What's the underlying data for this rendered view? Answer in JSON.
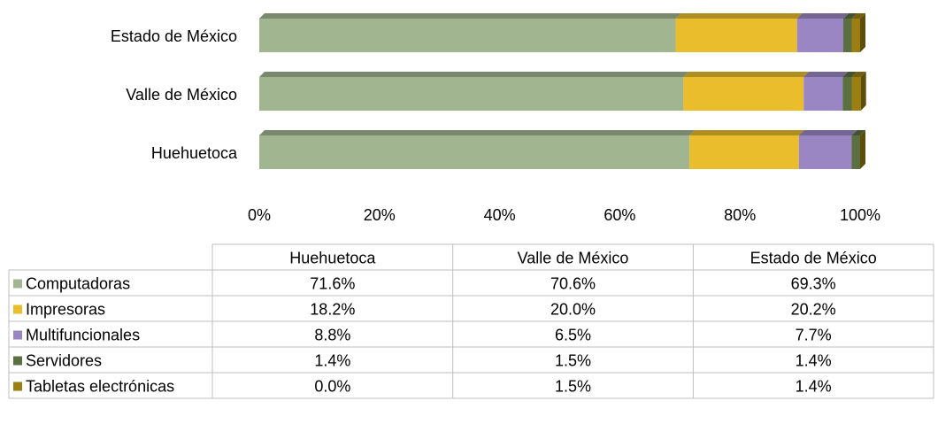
{
  "chart_data": {
    "type": "stacked-bar-horizontal",
    "categories": [
      "Huehuetoca",
      "Valle de México",
      "Estado de México"
    ],
    "series": [
      {
        "name": "Computadoras",
        "color": "#a2b591",
        "values": [
          71.6,
          70.6,
          69.3
        ],
        "value_labels": [
          "71.6%",
          "70.6%",
          "69.3%"
        ]
      },
      {
        "name": "Impresoras",
        "color": "#e9bd2c",
        "values": [
          18.2,
          20.0,
          20.2
        ],
        "value_labels": [
          "18.2%",
          "20.0%",
          "20.2%"
        ]
      },
      {
        "name": "Multifuncionales",
        "color": "#9b86c4",
        "values": [
          8.8,
          6.5,
          7.7
        ],
        "value_labels": [
          "8.8%",
          "6.5%",
          "7.7%"
        ]
      },
      {
        "name": "Servidores",
        "color": "#5a7042",
        "values": [
          1.4,
          1.5,
          1.4
        ],
        "value_labels": [
          "1.4%",
          "1.5%",
          "1.4%"
        ]
      },
      {
        "name": "Tabletas electrónicas",
        "color": "#9c7f12",
        "values": [
          0.0,
          1.5,
          1.4
        ],
        "value_labels": [
          "0.0%",
          "1.5%",
          "1.4%"
        ]
      }
    ],
    "xlim": [
      0,
      100
    ],
    "xticks": [
      {
        "value": 0,
        "label": "0%"
      },
      {
        "value": 20,
        "label": "20%"
      },
      {
        "value": 40,
        "label": "40%"
      },
      {
        "value": 60,
        "label": "60%"
      },
      {
        "value": 80,
        "label": "80%"
      },
      {
        "value": 100,
        "label": "100%"
      }
    ],
    "data_table": true
  }
}
